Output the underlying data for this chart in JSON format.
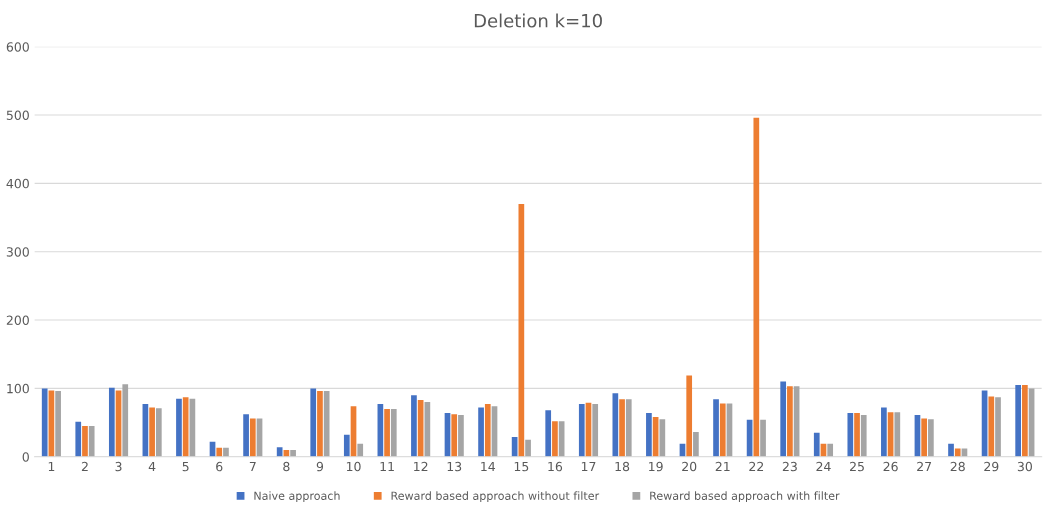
{
  "chart_data": {
    "type": "bar",
    "title": "Deletion k=10",
    "categories": [
      "1",
      "2",
      "3",
      "4",
      "5",
      "6",
      "7",
      "8",
      "9",
      "10",
      "11",
      "12",
      "13",
      "14",
      "15",
      "16",
      "17",
      "18",
      "19",
      "20",
      "21",
      "22",
      "23",
      "24",
      "25",
      "26",
      "27",
      "28",
      "29",
      "30"
    ],
    "series": [
      {
        "name": "Naive approach",
        "color": "#4472c4",
        "values": [
          100,
          51,
          101,
          77,
          85,
          22,
          62,
          14,
          100,
          32,
          77,
          90,
          64,
          72,
          29,
          68,
          77,
          93,
          64,
          19,
          84,
          54,
          110,
          35,
          64,
          72,
          61,
          19,
          97,
          105
        ]
      },
      {
        "name": "Reward based approach without filter",
        "color": "#ed7d31",
        "values": [
          97,
          45,
          97,
          72,
          87,
          13,
          56,
          10,
          96,
          74,
          70,
          83,
          62,
          77,
          370,
          52,
          79,
          84,
          58,
          119,
          78,
          496,
          103,
          19,
          64,
          65,
          56,
          12,
          88,
          105
        ]
      },
      {
        "name": "Reward based approach with filter",
        "color": "#a5a5a5",
        "values": [
          96,
          45,
          106,
          71,
          85,
          13,
          56,
          10,
          96,
          19,
          70,
          80,
          61,
          74,
          25,
          52,
          77,
          84,
          55,
          36,
          78,
          54,
          103,
          19,
          61,
          65,
          55,
          12,
          87,
          100
        ]
      }
    ],
    "ylim": [
      0,
      600
    ],
    "yticks": [
      0,
      100,
      200,
      300,
      400,
      500,
      600
    ],
    "grid": "y",
    "legend": "bottom"
  }
}
